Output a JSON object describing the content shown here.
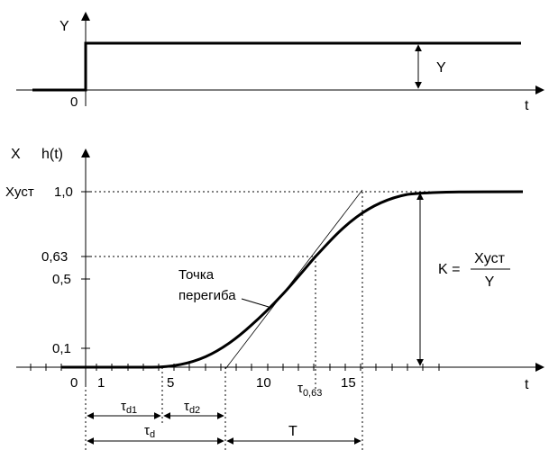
{
  "input_plot": {
    "y_axis_label": "Y",
    "x_axis_label": "t",
    "origin_label": "0",
    "amplitude_label": "Y"
  },
  "output_plot": {
    "x_var_label": "X",
    "h_label": "h(t)",
    "x_axis_label": "t",
    "y_ticks": {
      "xust": "Xуст",
      "one": "1,0",
      "p63": "0,63",
      "p5": "0,5",
      "p1": "0,1"
    },
    "x_ticks": {
      "zero": "0",
      "one": "1",
      "five": "5",
      "ten": "10",
      "fifteen": "15"
    },
    "tau_063": {
      "main": "τ",
      "sub": "0,63"
    },
    "inflection": {
      "line1": "Точка",
      "line2": "перегиба"
    },
    "gain": {
      "lhs": "K =",
      "numerator": "Xуст",
      "denominator": "Y"
    },
    "intervals": {
      "td1": {
        "main": "τ",
        "sub": "d1"
      },
      "td2": {
        "main": "τ",
        "sub": "d2"
      },
      "td": {
        "main": "τ",
        "sub": "d"
      },
      "T": "T"
    }
  },
  "chart_data": {
    "type": "line",
    "series": [
      {
        "name": "",
        "x": [
          0,
          4,
          8,
          10,
          12,
          13,
          14,
          16,
          18,
          20,
          24,
          28
        ],
        "y": [
          0,
          0,
          0.09,
          0.25,
          0.5,
          0.63,
          0.74,
          0.9,
          0.97,
          0.99,
          1.0,
          1.0
        ]
      }
    ],
    "xlabel": "t",
    "ylabel": "h(t)",
    "xticks": [
      0,
      1,
      5,
      10,
      15
    ],
    "yticks": [
      0.1,
      0.5,
      0.63,
      1.0
    ]
  }
}
